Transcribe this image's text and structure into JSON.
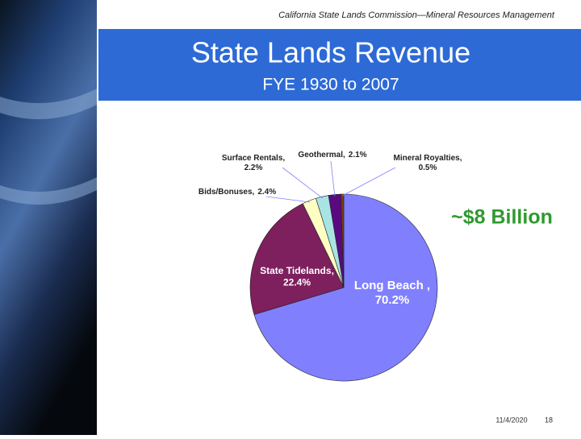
{
  "header": {
    "subtitle": "California State Lands Commission—Mineral Resources Management",
    "title": "State Lands Revenue",
    "period": "FYE 1930 to 2007"
  },
  "chart_data": {
    "type": "pie",
    "annotation": "~$8 Billion",
    "categories": [
      "Long Beach ,",
      "State Tidelands,",
      "Bids/Bonuses,",
      "Surface Rentals,",
      "Geothermal,",
      "Mineral Royalties,"
    ],
    "values": [
      70.2,
      22.4,
      2.4,
      2.2,
      2.1,
      0.5
    ],
    "value_labels": [
      "70.2%",
      "22.4%",
      "2.4%",
      "2.2%",
      "2.1%",
      "0.5%"
    ],
    "colors": [
      "#8080ff",
      "#7e1f5e",
      "#ffffc4",
      "#a8e4e4",
      "#5a0a80",
      "#7a3c10"
    ]
  },
  "footer": {
    "date": "11/4/2020",
    "page": "18"
  }
}
